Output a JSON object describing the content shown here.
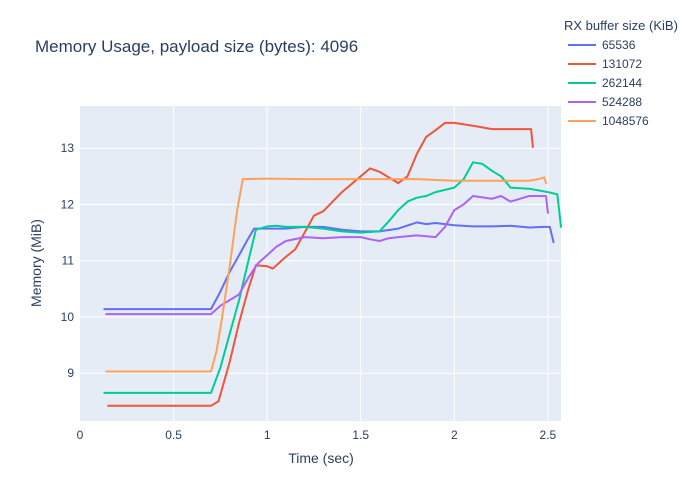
{
  "chart_data": {
    "type": "line",
    "title": "Memory Usage, payload size (bytes): 4096",
    "xlabel": "Time (sec)",
    "ylabel": "Memory (MiB)",
    "xlim": [
      0,
      2.57
    ],
    "ylim": [
      8.15,
      13.75
    ],
    "x_ticks": [
      0,
      0.5,
      1,
      1.5,
      2,
      2.5
    ],
    "x_tick_labels": [
      "0",
      "0.5",
      "1",
      "1.5",
      "2",
      "2.5"
    ],
    "y_ticks": [
      9,
      10,
      11,
      12,
      13
    ],
    "y_tick_labels": [
      "9",
      "10",
      "11",
      "12",
      "13"
    ],
    "grid": true,
    "background_color": "#E5ECF6",
    "legend_title": "RX buffer size (KiB)",
    "legend_position": "top-right",
    "series": [
      {
        "name": "65536",
        "color": "#636EFA",
        "points": [
          [
            0.13,
            10.14
          ],
          [
            0.7,
            10.14
          ],
          [
            0.75,
            10.45
          ],
          [
            0.8,
            10.8
          ],
          [
            0.85,
            11.1
          ],
          [
            0.9,
            11.4
          ],
          [
            0.93,
            11.57
          ],
          [
            1.0,
            11.57
          ],
          [
            1.1,
            11.57
          ],
          [
            1.2,
            11.6
          ],
          [
            1.3,
            11.6
          ],
          [
            1.4,
            11.55
          ],
          [
            1.5,
            11.52
          ],
          [
            1.6,
            11.52
          ],
          [
            1.7,
            11.57
          ],
          [
            1.8,
            11.68
          ],
          [
            1.85,
            11.65
          ],
          [
            1.9,
            11.67
          ],
          [
            2.0,
            11.63
          ],
          [
            2.1,
            11.61
          ],
          [
            2.2,
            11.61
          ],
          [
            2.3,
            11.62
          ],
          [
            2.4,
            11.59
          ],
          [
            2.48,
            11.6
          ],
          [
            2.51,
            11.6
          ],
          [
            2.53,
            11.33
          ]
        ]
      },
      {
        "name": "131072",
        "color": "#EF553B",
        "points": [
          [
            0.15,
            8.42
          ],
          [
            0.7,
            8.42
          ],
          [
            0.74,
            8.5
          ],
          [
            0.8,
            9.2
          ],
          [
            0.85,
            9.9
          ],
          [
            0.9,
            10.5
          ],
          [
            0.94,
            10.92
          ],
          [
            1.0,
            10.9
          ],
          [
            1.03,
            10.86
          ],
          [
            1.1,
            11.07
          ],
          [
            1.15,
            11.2
          ],
          [
            1.2,
            11.5
          ],
          [
            1.25,
            11.8
          ],
          [
            1.3,
            11.88
          ],
          [
            1.4,
            12.22
          ],
          [
            1.5,
            12.5
          ],
          [
            1.55,
            12.64
          ],
          [
            1.6,
            12.58
          ],
          [
            1.65,
            12.48
          ],
          [
            1.7,
            12.38
          ],
          [
            1.75,
            12.5
          ],
          [
            1.8,
            12.9
          ],
          [
            1.85,
            13.2
          ],
          [
            1.9,
            13.32
          ],
          [
            1.95,
            13.45
          ],
          [
            2.0,
            13.45
          ],
          [
            2.1,
            13.4
          ],
          [
            2.2,
            13.34
          ],
          [
            2.3,
            13.34
          ],
          [
            2.41,
            13.34
          ],
          [
            2.42,
            13.02
          ]
        ]
      },
      {
        "name": "262144",
        "color": "#00CC96",
        "points": [
          [
            0.13,
            8.65
          ],
          [
            0.7,
            8.65
          ],
          [
            0.75,
            9.1
          ],
          [
            0.8,
            9.7
          ],
          [
            0.85,
            10.3
          ],
          [
            0.9,
            11.0
          ],
          [
            0.94,
            11.55
          ],
          [
            1.0,
            11.61
          ],
          [
            1.05,
            11.62
          ],
          [
            1.1,
            11.6
          ],
          [
            1.15,
            11.6
          ],
          [
            1.2,
            11.6
          ],
          [
            1.3,
            11.57
          ],
          [
            1.4,
            11.52
          ],
          [
            1.5,
            11.5
          ],
          [
            1.6,
            11.52
          ],
          [
            1.65,
            11.7
          ],
          [
            1.7,
            11.9
          ],
          [
            1.75,
            12.05
          ],
          [
            1.8,
            12.12
          ],
          [
            1.85,
            12.15
          ],
          [
            1.9,
            12.22
          ],
          [
            2.0,
            12.3
          ],
          [
            2.05,
            12.45
          ],
          [
            2.1,
            12.75
          ],
          [
            2.15,
            12.72
          ],
          [
            2.2,
            12.6
          ],
          [
            2.25,
            12.5
          ],
          [
            2.3,
            12.3
          ],
          [
            2.4,
            12.28
          ],
          [
            2.45,
            12.25
          ],
          [
            2.5,
            12.22
          ],
          [
            2.55,
            12.18
          ],
          [
            2.57,
            11.6
          ]
        ]
      },
      {
        "name": "524288",
        "color": "#AB63FA",
        "points": [
          [
            0.14,
            10.05
          ],
          [
            0.7,
            10.05
          ],
          [
            0.75,
            10.2
          ],
          [
            0.8,
            10.3
          ],
          [
            0.85,
            10.4
          ],
          [
            0.9,
            10.7
          ],
          [
            0.95,
            10.95
          ],
          [
            1.0,
            11.1
          ],
          [
            1.05,
            11.25
          ],
          [
            1.1,
            11.35
          ],
          [
            1.2,
            11.42
          ],
          [
            1.3,
            11.4
          ],
          [
            1.4,
            11.42
          ],
          [
            1.5,
            11.42
          ],
          [
            1.55,
            11.38
          ],
          [
            1.6,
            11.35
          ],
          [
            1.65,
            11.4
          ],
          [
            1.7,
            11.42
          ],
          [
            1.8,
            11.45
          ],
          [
            1.9,
            11.42
          ],
          [
            1.95,
            11.6
          ],
          [
            2.0,
            11.9
          ],
          [
            2.05,
            12.0
          ],
          [
            2.1,
            12.15
          ],
          [
            2.2,
            12.1
          ],
          [
            2.25,
            12.15
          ],
          [
            2.3,
            12.05
          ],
          [
            2.35,
            12.1
          ],
          [
            2.4,
            12.15
          ],
          [
            2.45,
            12.15
          ],
          [
            2.49,
            12.15
          ],
          [
            2.5,
            11.85
          ]
        ]
      },
      {
        "name": "1048576",
        "color": "#FFA15A",
        "points": [
          [
            0.14,
            9.03
          ],
          [
            0.7,
            9.03
          ],
          [
            0.73,
            9.4
          ],
          [
            0.76,
            10.0
          ],
          [
            0.8,
            10.9
          ],
          [
            0.84,
            11.9
          ],
          [
            0.87,
            12.45
          ],
          [
            1.0,
            12.46
          ],
          [
            1.2,
            12.45
          ],
          [
            1.4,
            12.45
          ],
          [
            1.6,
            12.45
          ],
          [
            1.8,
            12.45
          ],
          [
            2.0,
            12.42
          ],
          [
            2.2,
            12.42
          ],
          [
            2.4,
            12.42
          ],
          [
            2.45,
            12.45
          ],
          [
            2.48,
            12.48
          ],
          [
            2.49,
            12.38
          ]
        ]
      }
    ]
  }
}
